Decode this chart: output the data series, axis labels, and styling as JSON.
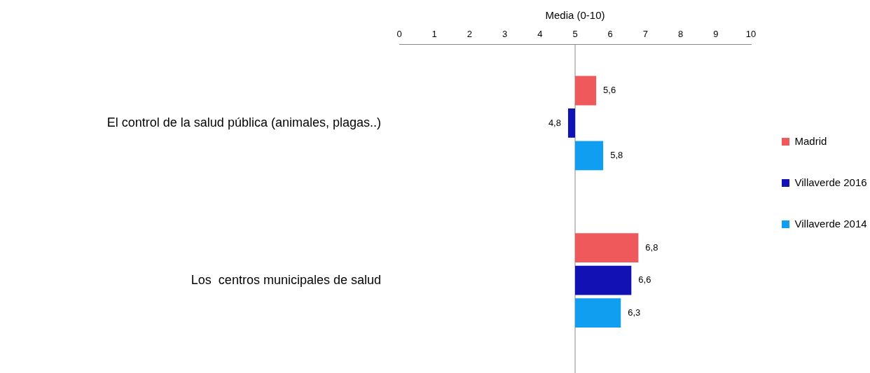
{
  "chart_data": {
    "type": "bar",
    "orientation": "horizontal",
    "xlabel": "Media (0-10)",
    "categories": [
      "El control de la salud pública (animales, plagas..)",
      "Los  centros municipales de salud"
    ],
    "series": [
      {
        "name": "Madrid",
        "color": "#f0595b",
        "base": [
          5,
          5
        ],
        "values": [
          0.6,
          1.8
        ],
        "value_labels": [
          "5,6",
          "6,8"
        ]
      },
      {
        "name": "Villaverde 2016",
        "color": "#1212b4",
        "base": [
          5,
          5
        ],
        "values": [
          -0.2,
          1.6
        ],
        "value_labels": [
          "4,8",
          "6,6"
        ]
      },
      {
        "name": "Villaverde 2014",
        "color": "#109ef0",
        "base": [
          5,
          5
        ],
        "values": [
          0.8,
          1.3
        ],
        "value_labels": [
          "5,8",
          "6,3"
        ]
      }
    ],
    "xlim": [
      0,
      10
    ],
    "xticks": [
      0,
      1,
      2,
      3,
      4,
      5,
      6,
      7,
      8,
      9,
      10
    ],
    "legend": "right"
  }
}
